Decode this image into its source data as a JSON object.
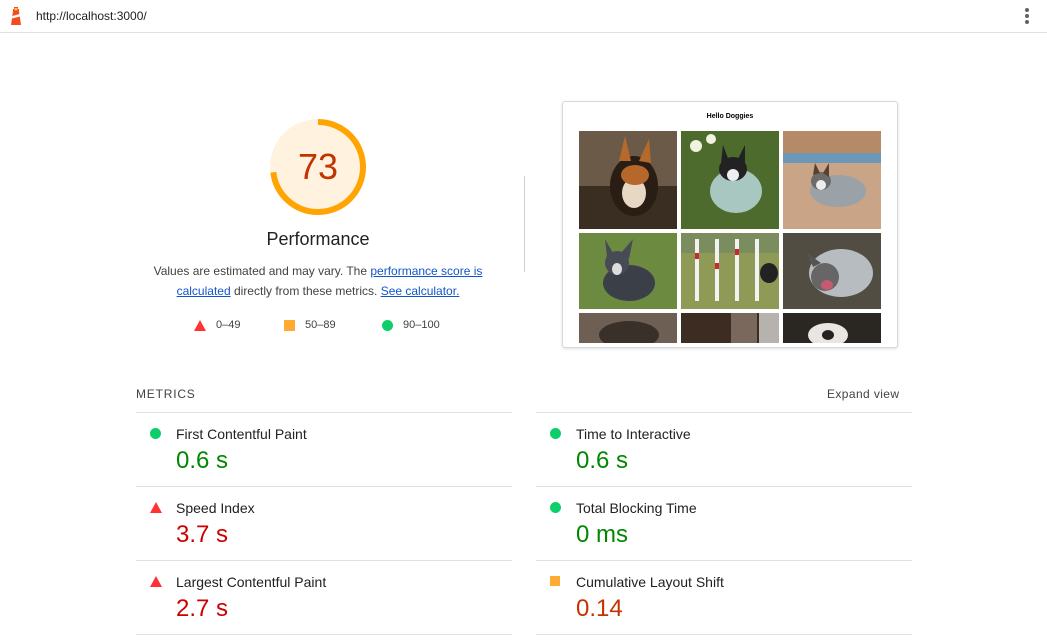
{
  "browser": {
    "url": "http://localhost:3000/"
  },
  "score": {
    "value": "73",
    "title": "Performance",
    "fraction": 0.73,
    "color": "#ffa400"
  },
  "description": {
    "text1": "Values are estimated and may vary. The ",
    "link1": "performance score is calculated",
    "text2": " directly from these metrics. ",
    "link2": "See calculator."
  },
  "legend": [
    {
      "label": "0–49",
      "shape": "triangle-icon",
      "color": "#ff3333"
    },
    {
      "label": "50–89",
      "shape": "square-icon",
      "color": "#ffaa33"
    },
    {
      "label": "90–100",
      "shape": "circle-icon",
      "color": "#0cce6b"
    }
  ],
  "screenshot": {
    "title": "Hello Doggies"
  },
  "metrics_section": {
    "header": "METRICS",
    "expand_label": "Expand view",
    "items": [
      {
        "name": "First Contentful Paint",
        "value": "0.6 s",
        "rating": "good"
      },
      {
        "name": "Time to Interactive",
        "value": "0.6 s",
        "rating": "good"
      },
      {
        "name": "Speed Index",
        "value": "3.7 s",
        "rating": "bad"
      },
      {
        "name": "Total Blocking Time",
        "value": "0 ms",
        "rating": "good"
      },
      {
        "name": "Largest Contentful Paint",
        "value": "2.7 s",
        "rating": "bad"
      },
      {
        "name": "Cumulative Layout Shift",
        "value": "0.14",
        "rating": "average"
      }
    ]
  },
  "colors": {
    "good": "#008800",
    "bad": "#cc0000",
    "average": "#c33300",
    "link": "#1155cc"
  }
}
